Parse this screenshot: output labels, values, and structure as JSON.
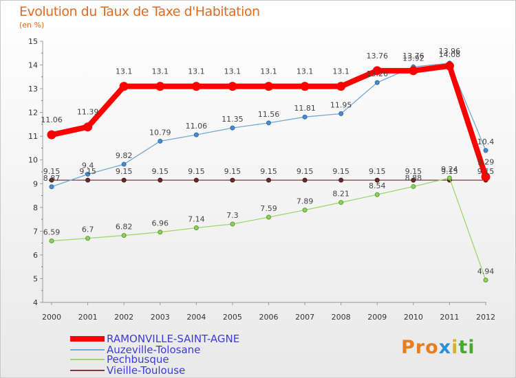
{
  "title": "Evolution du Taux de Taxe d'Habitation",
  "unit": "(en %)",
  "logo": [
    "Pro",
    "x",
    "i",
    "ti"
  ],
  "chart_data": {
    "type": "line",
    "title": "Evolution du Taux de Taxe d'Habitation",
    "ylabel": "(en %)",
    "xlabel": "",
    "ylim": [
      4,
      15
    ],
    "yticks": [
      "4",
      "5",
      "6",
      "7",
      "8",
      "9",
      "10",
      "11",
      "12",
      "13",
      "14",
      "15"
    ],
    "x": [
      "2000",
      "2001",
      "2002",
      "2003",
      "2004",
      "2005",
      "2006",
      "2007",
      "2008",
      "2009",
      "2010",
      "2011",
      "2012"
    ],
    "series": [
      {
        "name": "RAMONVILLE-SAINT-AGNE",
        "color": "#ff0000",
        "values": [
          11.06,
          11.39,
          13.1,
          13.1,
          13.1,
          13.1,
          13.1,
          13.1,
          13.1,
          13.76,
          13.76,
          13.96,
          9.29
        ],
        "labels": [
          "11.06",
          "11.39",
          "13.1",
          "13.1",
          "13.1",
          "13.1",
          "13.1",
          "13.1",
          "13.1",
          "13.76",
          "13.76",
          "13.96",
          "9.29"
        ]
      },
      {
        "name": "Auzeville-Tolosane",
        "color": "#74a8d6",
        "values": [
          8.87,
          9.4,
          9.82,
          10.79,
          11.06,
          11.35,
          11.56,
          11.81,
          11.95,
          13.26,
          13.92,
          14.08,
          10.4
        ],
        "labels": [
          "8.87",
          "9.4",
          "9.82",
          "10.79",
          "11.06",
          "11.35",
          "11.56",
          "11.81",
          "11.95",
          "13.26",
          "13.92",
          "14.08",
          "10.4"
        ]
      },
      {
        "name": "Pechbusque",
        "color": "#9ed66b",
        "values": [
          6.59,
          6.7,
          6.82,
          6.96,
          7.14,
          7.3,
          7.59,
          7.89,
          8.21,
          8.54,
          8.88,
          9.24,
          4.94
        ],
        "labels": [
          "6.59",
          "6.7",
          "6.82",
          "6.96",
          "7.14",
          "7.3",
          "7.59",
          "7.89",
          "8.21",
          "8.54",
          "8.88",
          "9.24",
          "4.94"
        ]
      },
      {
        "name": "Vieille-Toulouse",
        "color": "#7a3a3a",
        "values": [
          9.15,
          9.15,
          9.15,
          9.15,
          9.15,
          9.15,
          9.15,
          9.15,
          9.15,
          9.15,
          9.15,
          9.15,
          9.15
        ],
        "labels": [
          "9.15",
          "9.15",
          "9.15",
          "9.15",
          "9.15",
          "9.15",
          "9.15",
          "9.15",
          "9.15",
          "9.15",
          "9.15",
          "9.15",
          "9.15"
        ]
      }
    ],
    "legend": "bottom-left",
    "grid": false
  }
}
